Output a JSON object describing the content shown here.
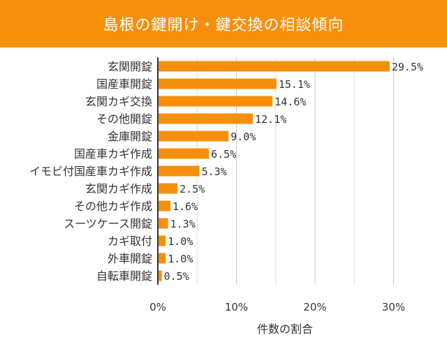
{
  "chart_data": {
    "type": "bar",
    "orientation": "horizontal",
    "title": "島根の鍵開け・鍵交換の相談傾向",
    "xlabel": "件数の割合",
    "ylabel": "",
    "xlim": [
      0,
      30
    ],
    "x_ticks": [
      0,
      10,
      20,
      30
    ],
    "x_tick_labels": [
      "0%",
      "10%",
      "20%",
      "30%"
    ],
    "grid": true,
    "bar_color": "#f6900c",
    "categories": [
      "玄関開錠",
      "国産車開錠",
      "玄関カギ交換",
      "その他開錠",
      "金庫開錠",
      "国産車カギ作成",
      "イモビ付国産車カギ作成",
      "玄関カギ作成",
      "その他カギ作成",
      "スーツケース開錠",
      "カギ取付",
      "外車開錠",
      "自転車開錠"
    ],
    "values": [
      29.5,
      15.1,
      14.6,
      12.1,
      9.0,
      6.5,
      5.3,
      2.5,
      1.6,
      1.3,
      1.0,
      1.0,
      0.5
    ],
    "value_labels": [
      "29.5%",
      "15.1%",
      "14.6%",
      "12.1%",
      "9.0%",
      "6.5%",
      "5.3%",
      "2.5%",
      "1.6%",
      "1.3%",
      "1.0%",
      "1.0%",
      "0.5%"
    ]
  }
}
